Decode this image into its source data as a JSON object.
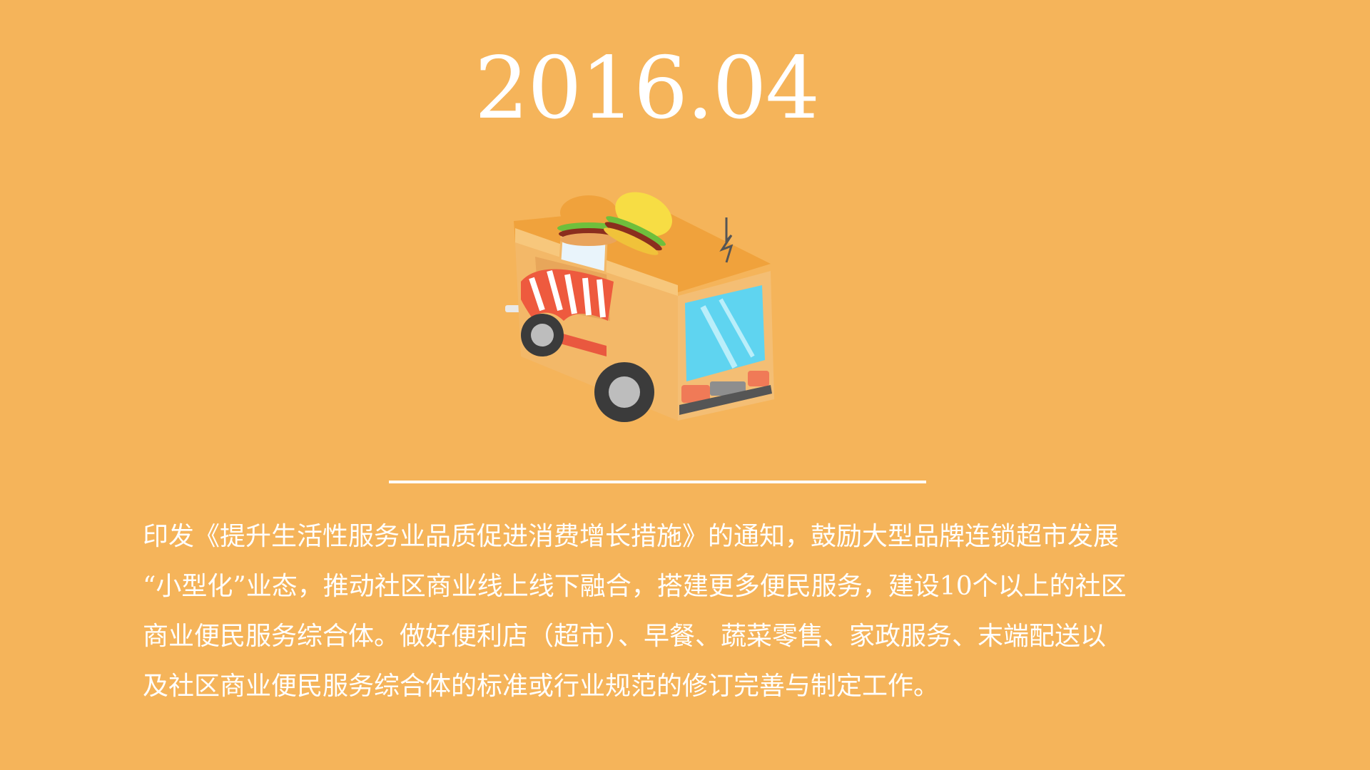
{
  "slide": {
    "date": "2016.04",
    "body_lines": [
      "印发《提升生活性服务业品质促进消费增长措施》的通知，鼓励大型品牌连锁超市发展",
      "“小型化”业态，推动社区商业线上线下融合，搭建更多便民服务，建设10个以上的社区",
      "商业便民服务综合体。做好便利店（超市）、早餐、蔬菜零售、家政服务、末端配送以",
      "及社区商业便民服务综合体的标准或行业规范的修订完善与制定工作。"
    ]
  },
  "colors": {
    "background": "#F5B45A",
    "text": "#FFFFFF"
  },
  "icons": {
    "illustration": "food-truck-icon"
  }
}
